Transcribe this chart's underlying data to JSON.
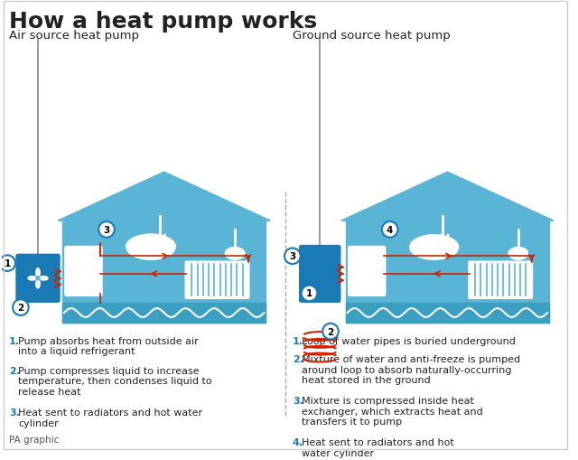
{
  "title": "How a heat pump works",
  "title_fontsize": 18,
  "title_fontweight": "bold",
  "bg_color": "#ffffff",
  "light_blue": "#5ab4d6",
  "dark_blue": "#1a7ab5",
  "house_fill": "#5ab4d6",
  "red_color": "#cc2200",
  "circle_edge": "#1a7ab5",
  "text_color": "#222222",
  "label_color": "#1a7ab5",
  "left_subtitle": "Air source heat pump",
  "right_subtitle": "Ground source heat pump",
  "left_notes": [
    [
      "1.",
      " Pump absorbs heat from outside air\ninto a liquid refrigerant"
    ],
    [
      "2.",
      " Pump compresses liquid to increase\ntemperature, then condenses liquid to\nrelease heat"
    ],
    [
      "3.",
      " Heat sent to radiators and hot water\ncylinder"
    ]
  ],
  "right_notes": [
    [
      "1.",
      " Loop of water pipes is buried underground"
    ],
    [
      "2.",
      " Mixture of water and anti-freeze is pumped\naround loop to absorb naturally-occurring\nheat stored in the ground"
    ],
    [
      "3.",
      " Mixture is compressed inside heat\nexchanger, which extracts heat and\ntransfers it to pump"
    ],
    [
      "4.",
      " Heat sent to radiators and hot\nwater cylinder"
    ]
  ],
  "footer": "PA graphic"
}
